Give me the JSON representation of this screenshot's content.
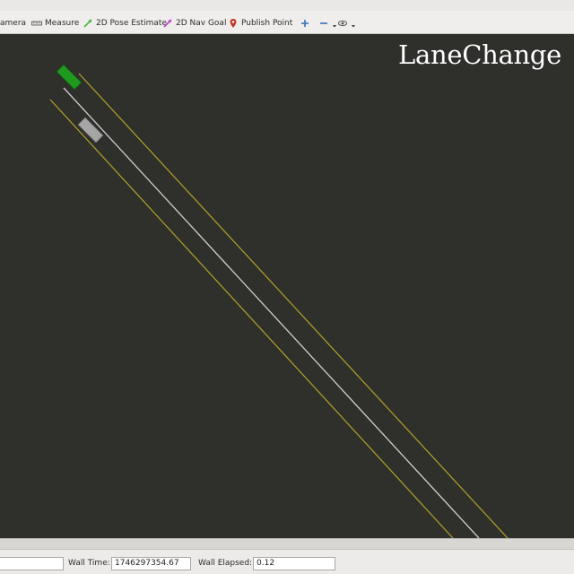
{
  "toolbar": {
    "camera_label": "amera",
    "measure_label": "Measure",
    "pose_estimate_label": "2D Pose Estimate",
    "nav_goal_label": "2D Nav Goal",
    "publish_point_label": "Publish Point"
  },
  "viewport": {
    "title": "LaneChange",
    "background_color": "#2f2f2b",
    "ego_vehicle_color": "#1f9a1f",
    "other_vehicle_color": "#a6a6a6",
    "lane_boundary_color": "#b3a32c",
    "center_line_color": "#cfcfcf"
  },
  "statusbar": {
    "left_field_value": "",
    "wall_time_label": "Wall Time:",
    "wall_time_value": "1746297354.67",
    "wall_elapsed_label": "Wall Elapsed:",
    "wall_elapsed_value": "0.12"
  }
}
